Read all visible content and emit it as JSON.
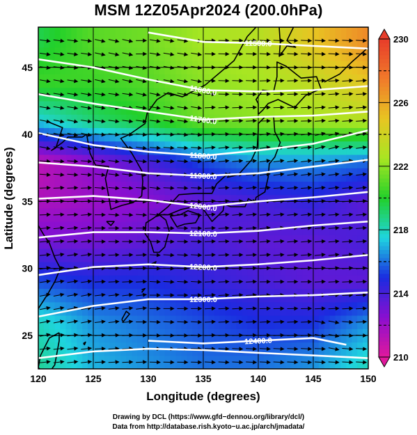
{
  "chart_data": {
    "type": "heatmap",
    "title": "MSM 12Z05Apr2024 (200.0hPa)",
    "xlabel": "Longitude (degrees)",
    "ylabel": "Latitude  (degrees)",
    "xlim": [
      120,
      150
    ],
    "ylim": [
      22.5,
      48
    ],
    "x_ticks": [
      120,
      125,
      130,
      135,
      140,
      145,
      150
    ],
    "y_ticks": [
      25,
      30,
      35,
      40,
      45
    ],
    "colorbar": {
      "range": [
        210,
        230
      ],
      "ticks": [
        210,
        214,
        218,
        222,
        226,
        230
      ],
      "colors": [
        "#e0189c",
        "#8a0fd0",
        "#1a2be0",
        "#1fd4e0",
        "#22d02a",
        "#a8e622",
        "#e8c522",
        "#f07a2a",
        "#e83d2a"
      ]
    },
    "temperature_field": {
      "lon": [
        120,
        125,
        130,
        135,
        140,
        145,
        150
      ],
      "lat": [
        47,
        44,
        41,
        38,
        35,
        32,
        29,
        26,
        23
      ],
      "values": [
        [
          219.5,
          221.0,
          221.5,
          222.5,
          223.0,
          225.0,
          227.0
        ],
        [
          220.5,
          220.5,
          221.0,
          222.0,
          222.5,
          223.5,
          225.0
        ],
        [
          217.5,
          219.0,
          220.0,
          221.5,
          222.0,
          222.5,
          223.0
        ],
        [
          211.0,
          212.5,
          214.0,
          215.5,
          216.5,
          216.5,
          216.0
        ],
        [
          211.5,
          212.0,
          212.5,
          213.5,
          214.0,
          214.5,
          213.5
        ],
        [
          213.0,
          213.0,
          213.5,
          214.0,
          213.5,
          213.5,
          214.0
        ],
        [
          215.5,
          215.0,
          215.0,
          214.5,
          214.0,
          213.5,
          213.5
        ],
        [
          218.0,
          216.5,
          216.0,
          215.5,
          215.0,
          215.0,
          216.5
        ],
        [
          218.5,
          217.0,
          216.5,
          216.0,
          216.0,
          216.5,
          218.0
        ]
      ]
    },
    "geopotential_contours": [
      {
        "label": "11500.0",
        "points": [
          [
            130,
            47.6
          ],
          [
            135,
            46.9
          ],
          [
            140,
            46.8
          ],
          [
            145,
            46.6
          ],
          [
            150,
            46.4
          ]
        ]
      },
      {
        "label": "11600.0",
        "points": [
          [
            120,
            45.6
          ],
          [
            125,
            45.0
          ],
          [
            130,
            44.1
          ],
          [
            135,
            43.3
          ],
          [
            140,
            43.2
          ],
          [
            145,
            43.3
          ],
          [
            150,
            43.6
          ]
        ]
      },
      {
        "label": "11700.0",
        "points": [
          [
            120,
            43.0
          ],
          [
            125,
            42.3
          ],
          [
            130,
            41.7
          ],
          [
            135,
            41.1
          ],
          [
            140,
            41.3
          ],
          [
            145,
            41.4
          ],
          [
            150,
            41.7
          ]
        ]
      },
      {
        "label": "11800.0",
        "points": [
          [
            120,
            40.1
          ],
          [
            125,
            39.2
          ],
          [
            130,
            38.7
          ],
          [
            135,
            38.4
          ],
          [
            140,
            38.8
          ],
          [
            145,
            39.3
          ],
          [
            150,
            40.3
          ]
        ]
      },
      {
        "label": "11900.0",
        "points": [
          [
            120,
            37.9
          ],
          [
            125,
            37.6
          ],
          [
            130,
            37.1
          ],
          [
            135,
            36.9
          ],
          [
            140,
            37.1
          ],
          [
            145,
            37.6
          ],
          [
            150,
            38.1
          ]
        ]
      },
      {
        "label": "12000.0",
        "points": [
          [
            120,
            35.2
          ],
          [
            125,
            35.4
          ],
          [
            130,
            35.1
          ],
          [
            135,
            34.6
          ],
          [
            140,
            35.0
          ],
          [
            145,
            35.3
          ],
          [
            150,
            35.7
          ]
        ]
      },
      {
        "label": "12100.0",
        "points": [
          [
            120,
            32.3
          ],
          [
            125,
            32.7
          ],
          [
            130,
            32.7
          ],
          [
            135,
            32.6
          ],
          [
            140,
            32.8
          ],
          [
            145,
            33.2
          ],
          [
            150,
            33.5
          ]
        ]
      },
      {
        "label": "12200.0",
        "points": [
          [
            120,
            29.5
          ],
          [
            125,
            30.1
          ],
          [
            130,
            30.3
          ],
          [
            135,
            30.1
          ],
          [
            140,
            30.3
          ],
          [
            145,
            30.6
          ],
          [
            150,
            31.0
          ]
        ]
      },
      {
        "label": "12300.0",
        "points": [
          [
            120,
            26.4
          ],
          [
            125,
            27.2
          ],
          [
            130,
            27.7
          ],
          [
            135,
            27.7
          ],
          [
            140,
            27.9
          ],
          [
            145,
            28.0
          ],
          [
            150,
            28.2
          ]
        ]
      },
      {
        "label": "12400.0",
        "points": [
          [
            130,
            24.6
          ],
          [
            135,
            24.4
          ],
          [
            140,
            24.6
          ],
          [
            145,
            24.8
          ],
          [
            148,
            24.3
          ]
        ]
      },
      {
        "label": "",
        "points": [
          [
            120,
            23.3
          ],
          [
            125,
            23.8
          ],
          [
            130,
            24.0
          ],
          [
            135,
            23.9
          ],
          [
            140,
            23.7
          ],
          [
            145,
            23.5
          ],
          [
            150,
            23.3
          ]
        ]
      }
    ]
  },
  "credits": {
    "line1": "Drawing by DCL (https://www.gfd−dennou.org/library/dcl/)",
    "line2": "Data from http://database.rish.kyoto−u.ac.jp/arch/jmadata/"
  }
}
